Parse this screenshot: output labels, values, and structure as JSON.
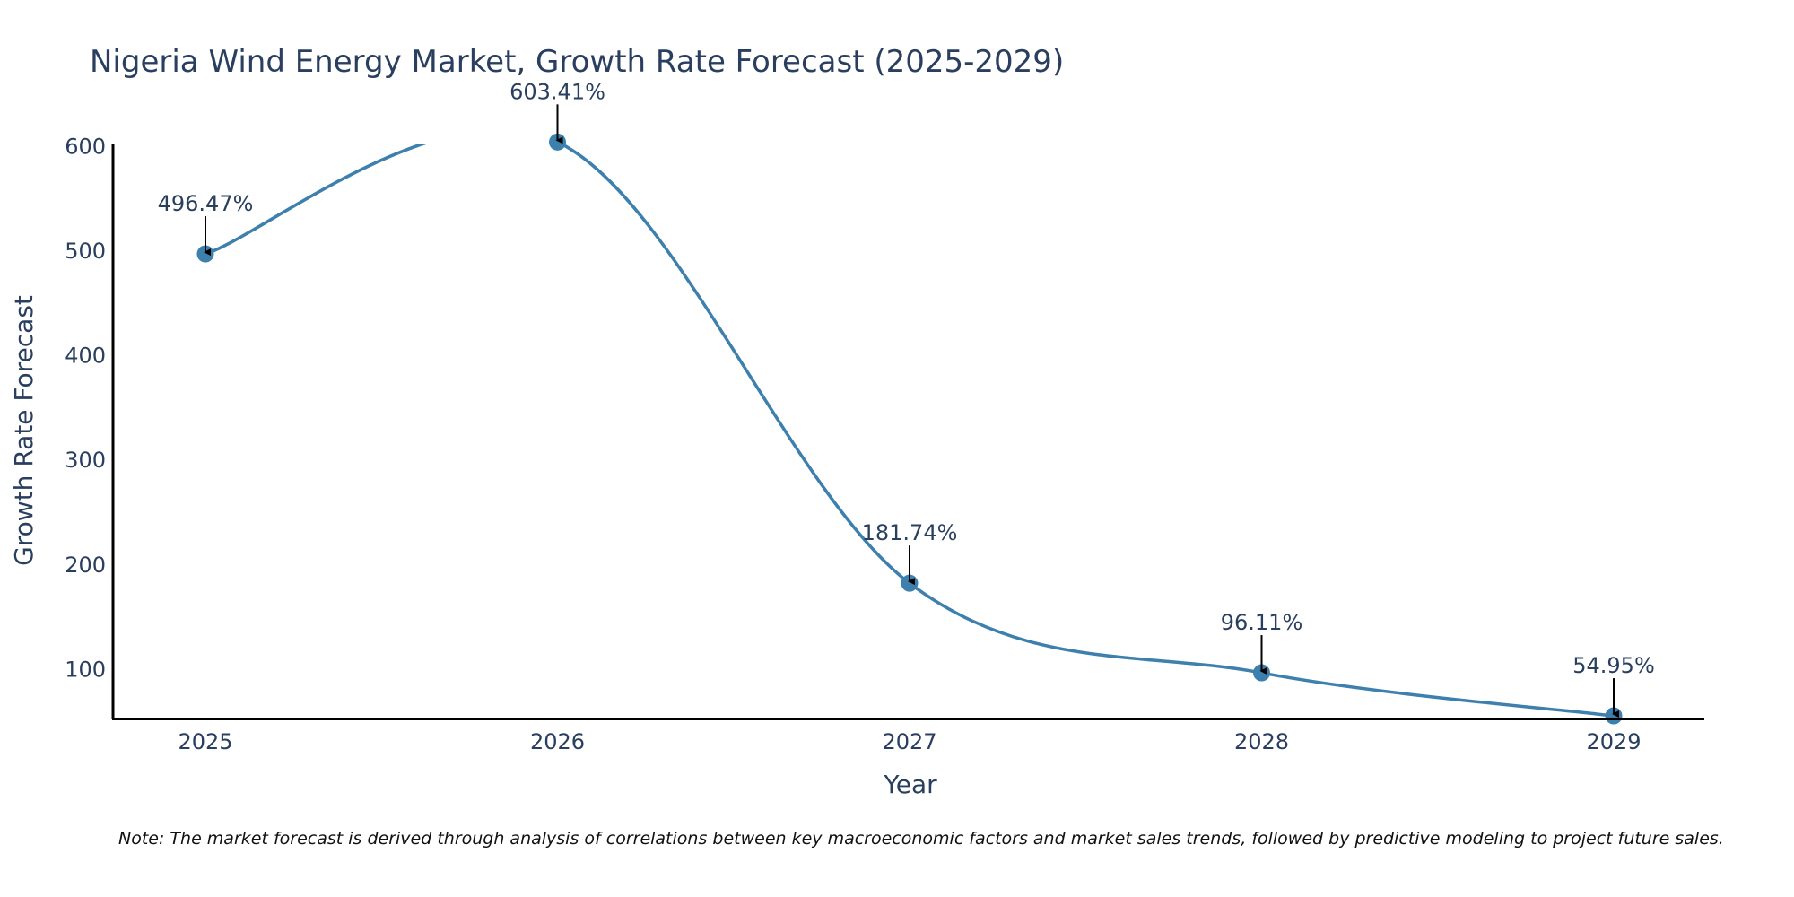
{
  "chart_data": {
    "type": "line",
    "title": "Nigeria Wind Energy Market, Growth Rate Forecast (2025-2029)",
    "xlabel": "Year",
    "ylabel": "Growth Rate Forecast",
    "categories": [
      "2025",
      "2026",
      "2027",
      "2028",
      "2029"
    ],
    "series": [
      {
        "name": "Growth Rate Forecast",
        "values": [
          496.47,
          603.41,
          181.74,
          96.11,
          54.95
        ]
      }
    ],
    "annotations": [
      "496.47%",
      "603.41%",
      "181.74%",
      "96.11%",
      "54.95%"
    ],
    "y_ticks": [
      "100",
      "200",
      "300",
      "400",
      "500",
      "600"
    ],
    "ylim": [
      52,
      602
    ],
    "line_color": "#3d7fad",
    "note": "Note: The market forecast is derived through analysis of correlations between key macroeconomic factors and market sales trends, followed by predictive modeling to project future sales."
  }
}
